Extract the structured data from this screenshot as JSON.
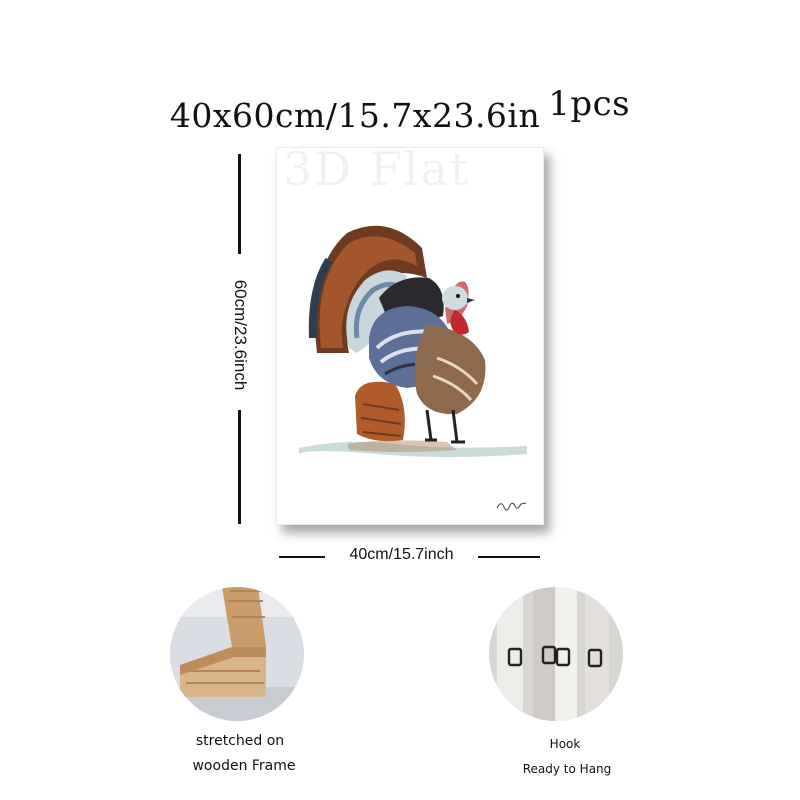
{
  "headline": {
    "size": "40x60cm/15.7x23.6in",
    "quantity": "1pcs"
  },
  "watermark": "3D Flat",
  "dimensions": {
    "height": "60cm/23.6inch",
    "width": "40cm/15.7inch"
  },
  "features": [
    {
      "caption_line1": "stretched on",
      "caption_line2": "wooden Frame",
      "icon": "wooden-frame-corner"
    },
    {
      "caption_line1": "Hook",
      "caption_line2": "Ready to Hang",
      "icon": "hanging-hook"
    }
  ],
  "artwork": {
    "subject": "turkey watercolor",
    "colors": {
      "tail_outer": "#7a3f22",
      "tail_blue": "#3b4f63",
      "body_blue": "#5a6f95",
      "wattle": "#c1272d",
      "legs": "#222222"
    }
  }
}
